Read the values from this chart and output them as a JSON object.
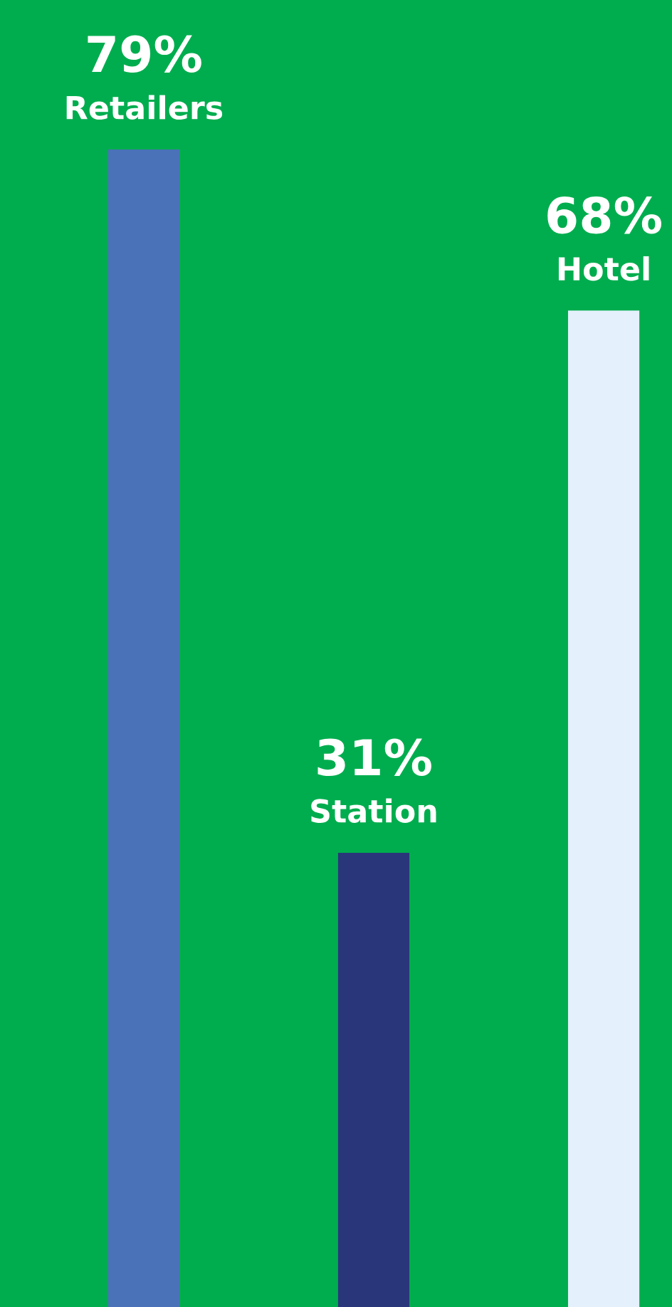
{
  "chart_data": {
    "type": "bar",
    "categories": [
      "Retailers",
      "Station",
      "Hotel"
    ],
    "values": [
      79,
      31,
      68
    ],
    "colors": [
      "#4a72b8",
      "#2a367a",
      "#e4f0fc"
    ],
    "value_labels": [
      "79%",
      "31%",
      "68%"
    ],
    "ylim": [
      0,
      89.2
    ]
  }
}
